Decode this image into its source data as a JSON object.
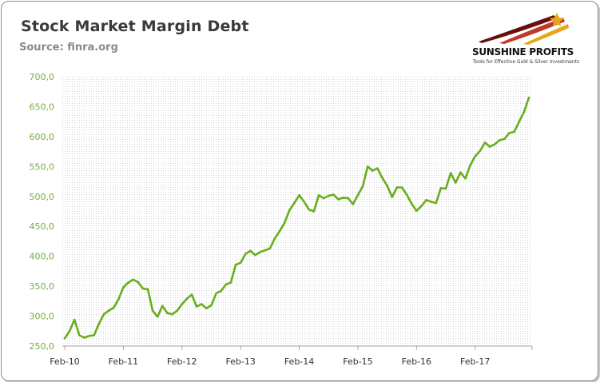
{
  "header": {
    "title": "Stock Market Margin Debt",
    "source": "Source: finra.org"
  },
  "logo": {
    "name": "SUNSHINE PROFITS",
    "tagline": "Tools for Effective Gold & Silver Investments",
    "colors": [
      "#6b0d0d",
      "#c0392b",
      "#e6a817"
    ]
  },
  "colors": {
    "line": "#6aad1e",
    "y_tick_text": "#70ad47",
    "x_tick_text": "#333333",
    "grid_dot": "#d4d4d4"
  },
  "chart_data": {
    "type": "line",
    "title": "Stock Market Margin Debt",
    "xlabel": "",
    "ylabel": "",
    "ylim": [
      250,
      700
    ],
    "y_ticks": [
      "250,0",
      "300,0",
      "350,0",
      "400,0",
      "450,0",
      "500,0",
      "550,0",
      "600,0",
      "650,0",
      "700,0"
    ],
    "x_ticks": [
      "Feb-10",
      "Feb-11",
      "Feb-12",
      "Feb-13",
      "Feb-14",
      "Feb-15",
      "Feb-16",
      "Feb-17"
    ],
    "x_start": "Feb-10",
    "x_end": "Dec-17",
    "x_step": "month",
    "grid": true,
    "series": [
      {
        "values": [
          263,
          275,
          294,
          268,
          264,
          267,
          268,
          287,
          303,
          309,
          314,
          328,
          348,
          356,
          361,
          357,
          346,
          345,
          309,
          299,
          317,
          305,
          303,
          309,
          320,
          329,
          336,
          316,
          320,
          313,
          318,
          338,
          342,
          353,
          356,
          386,
          389,
          404,
          409,
          402,
          407,
          410,
          413,
          430,
          442,
          456,
          477,
          489,
          502,
          491,
          478,
          475,
          502,
          497,
          501,
          503,
          495,
          498,
          497,
          487,
          502,
          517,
          550,
          543,
          547,
          531,
          518,
          499,
          515,
          515,
          503,
          488,
          476,
          484,
          494,
          491,
          489,
          514,
          513,
          539,
          523,
          540,
          530,
          552,
          567,
          576,
          590,
          583,
          587,
          594,
          596,
          606,
          608,
          625,
          641,
          665
        ]
      }
    ]
  }
}
